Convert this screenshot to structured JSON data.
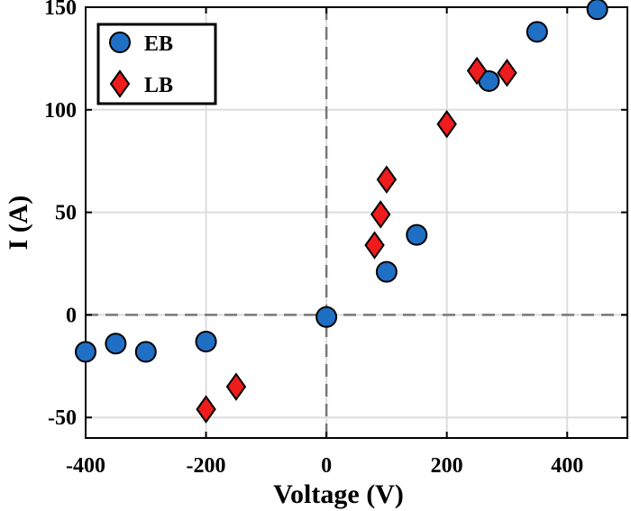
{
  "chart_data": {
    "type": "scatter",
    "title": "",
    "xlabel": "Voltage (V)",
    "ylabel": "I (A)",
    "xlim": [
      -400,
      500
    ],
    "ylim": [
      -60,
      150
    ],
    "xticks": [
      -400,
      -200,
      0,
      200,
      400
    ],
    "yticks": [
      -50,
      0,
      50,
      100,
      150
    ],
    "xtick_labels": [
      "-400",
      "-200",
      "0",
      "200",
      "400"
    ],
    "ytick_labels": [
      "-50",
      "0",
      "50",
      "100",
      "150"
    ],
    "grid": true,
    "zero_lines": true,
    "legend_position": "top-left",
    "series": [
      {
        "name": "EB",
        "marker": "circle",
        "color": "#1f6fc5",
        "points": [
          {
            "x": -400,
            "y": -18
          },
          {
            "x": -350,
            "y": -14
          },
          {
            "x": -300,
            "y": -18
          },
          {
            "x": -200,
            "y": -13
          },
          {
            "x": 0,
            "y": -1
          },
          {
            "x": 100,
            "y": 21
          },
          {
            "x": 150,
            "y": 39
          },
          {
            "x": 270,
            "y": 114
          },
          {
            "x": 350,
            "y": 138
          },
          {
            "x": 450,
            "y": 149
          }
        ]
      },
      {
        "name": "LB",
        "marker": "diamond",
        "color": "#ee1c1c",
        "points": [
          {
            "x": -200,
            "y": -46
          },
          {
            "x": -150,
            "y": -35
          },
          {
            "x": 80,
            "y": 34
          },
          {
            "x": 90,
            "y": 49
          },
          {
            "x": 100,
            "y": 66
          },
          {
            "x": 200,
            "y": 93
          },
          {
            "x": 250,
            "y": 119
          },
          {
            "x": 300,
            "y": 118
          }
        ]
      }
    ]
  }
}
